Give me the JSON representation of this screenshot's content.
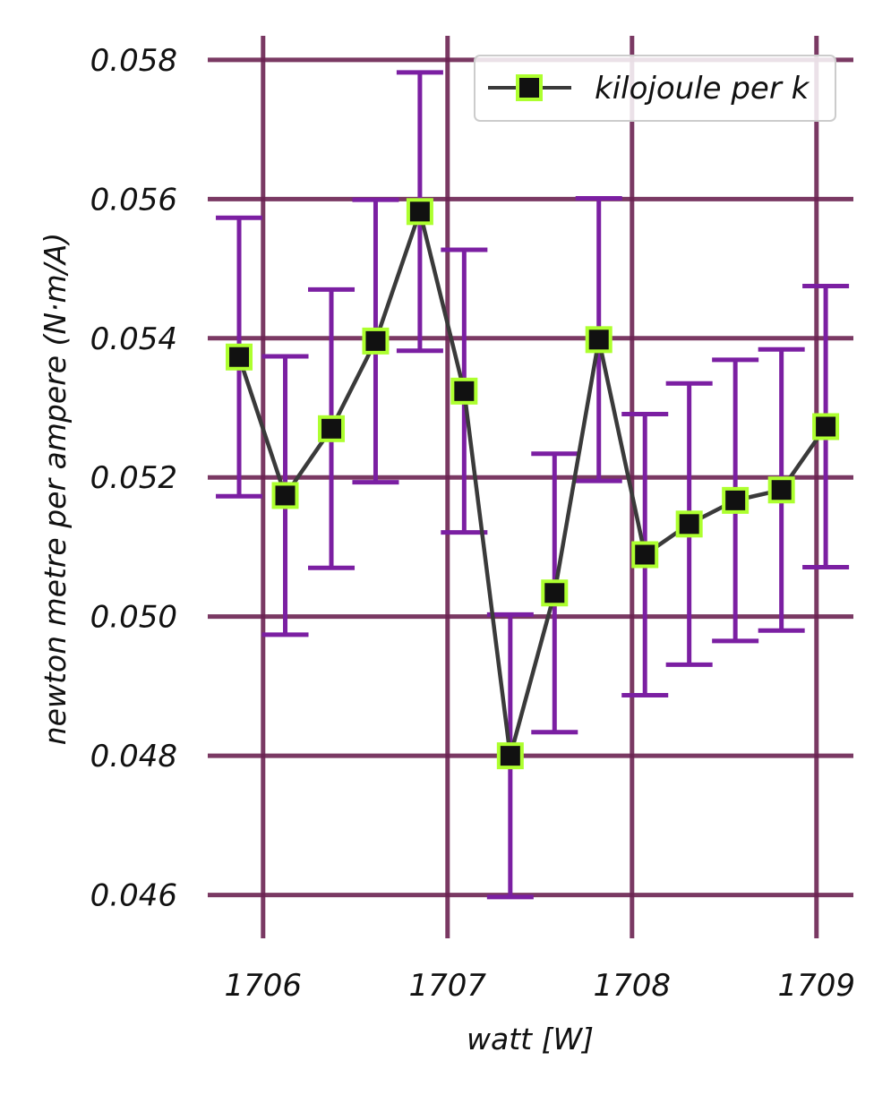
{
  "chart_data": {
    "type": "line",
    "title": "",
    "xlabel": "watt [W]",
    "ylabel": "newton metre per ampere (N·m/A)",
    "xlim": [
      1705.7,
      1709.2
    ],
    "ylim": [
      0.0453,
      0.0585
    ],
    "xticks": [
      1706,
      1707,
      1708,
      1709
    ],
    "xtick_labels": [
      "1706",
      "1707",
      "1708",
      "1709"
    ],
    "yticks": [
      0.046,
      0.048,
      0.05,
      0.052,
      0.054,
      0.056,
      0.058
    ],
    "ytick_labels": [
      "0.046",
      "0.048",
      "0.050",
      "0.052",
      "0.054",
      "0.056",
      "0.058"
    ],
    "grid": true,
    "legend_position": "top-right",
    "series": [
      {
        "name": "kilojoule per k",
        "x": [
          1705.87,
          1706.12,
          1706.37,
          1706.61,
          1706.85,
          1707.09,
          1707.34,
          1707.58,
          1707.82,
          1708.07,
          1708.31,
          1708.56,
          1708.81,
          1709.05
        ],
        "y": [
          0.05373,
          0.05174,
          0.0527,
          0.05396,
          0.05582,
          0.05324,
          0.048,
          0.05034,
          0.05398,
          0.05089,
          0.05133,
          0.05167,
          0.05182,
          0.05273
        ],
        "yerr": [
          0.002,
          0.002,
          0.002,
          0.00203,
          0.002,
          0.00203,
          0.00203,
          0.002,
          0.00203,
          0.00202,
          0.00202,
          0.00202,
          0.00202,
          0.00202
        ]
      }
    ],
    "colors": {
      "grid": "#6b2352",
      "line": "#3a3a3a",
      "errorbar": "#7b1fa2",
      "marker_face": "#111111",
      "marker_edge": "#adff2f"
    }
  }
}
